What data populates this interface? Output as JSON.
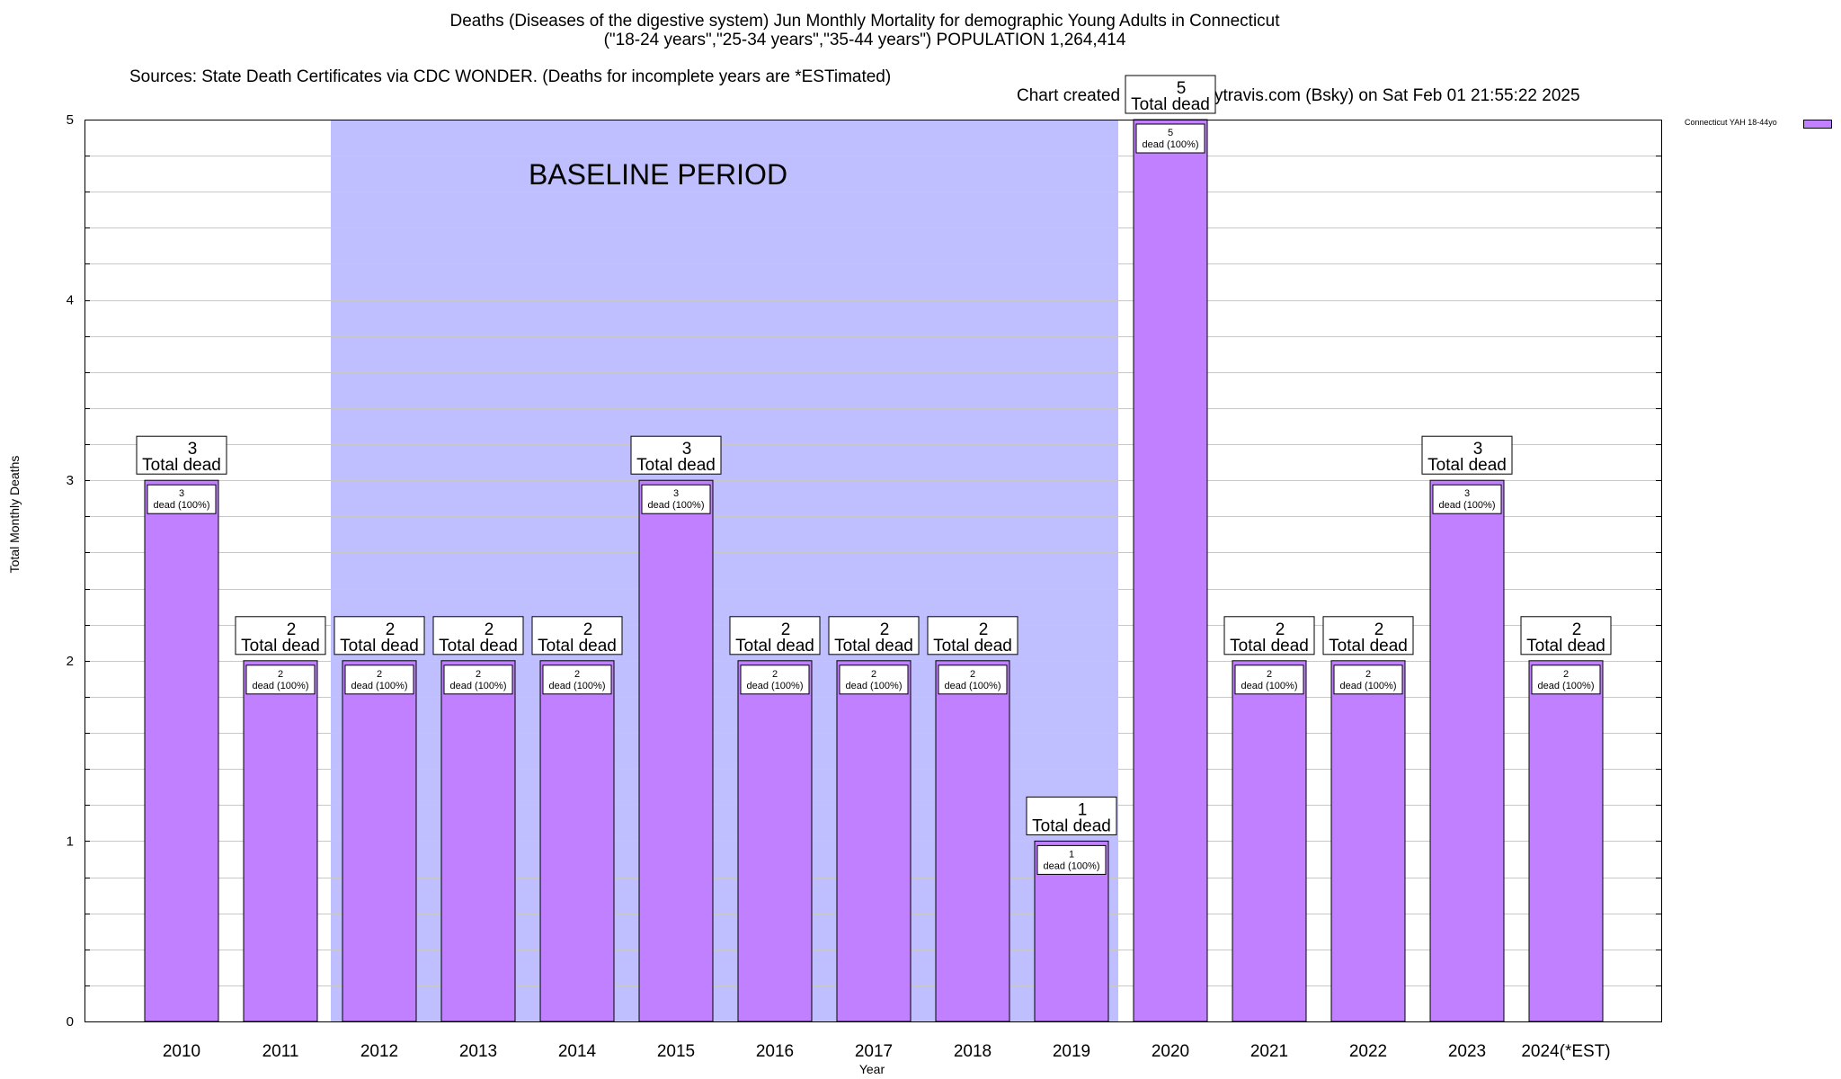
{
  "titles": {
    "line1": "Deaths (Diseases of the digestive system) Jun Monthly Mortality for demographic Young Adults in Connecticut",
    "line2": "(\"18-24 years\",\"25-34 years\",\"35-44 years\") POPULATION 1,264,414",
    "sources": "Sources: State Death Certificates via CDC WONDER. (Deaths for incomplete years are *ESTimated)",
    "credit": "Chart created by @gregorytravis.com (Bsky) on Sat Feb 01 21:55:22 2025"
  },
  "chart_data": {
    "type": "bar",
    "xlabel": "Year",
    "ylabel": "Total Monthly Deaths",
    "ylim": [
      0,
      5
    ],
    "yticks": [
      0,
      1,
      2,
      3,
      4,
      5
    ],
    "grid": true,
    "legend_position": "top-right",
    "categories": [
      "2010",
      "2011",
      "2012",
      "2013",
      "2014",
      "2015",
      "2016",
      "2017",
      "2018",
      "2019",
      "2020",
      "2021",
      "2022",
      "2023",
      "2024(*EST)"
    ],
    "series": [
      {
        "name": "Connecticut YAH 18-44yo",
        "values": [
          3,
          2,
          2,
          2,
          2,
          3,
          2,
          2,
          2,
          1,
          5,
          2,
          2,
          3,
          2
        ],
        "inner_labels": [
          "dead (100%)",
          "dead (100%)",
          "dead (100%)",
          "dead (100%)",
          "dead (100%)",
          "dead (100%)",
          "dead (100%)",
          "dead (100%)",
          "dead (100%)",
          "dead (100%)",
          "dead (100%)",
          "dead (100%)",
          "dead (100%)",
          "dead (100%)",
          "dead (100%)"
        ]
      }
    ],
    "total_label": "Total dead",
    "baseline": {
      "label": "BASELINE PERIOD",
      "from_category": "2012",
      "to_category": "2019"
    },
    "colors": {
      "bar": "#c080ff",
      "baseline_band": "#bfbfff",
      "grid": "#c8c8c8"
    }
  }
}
